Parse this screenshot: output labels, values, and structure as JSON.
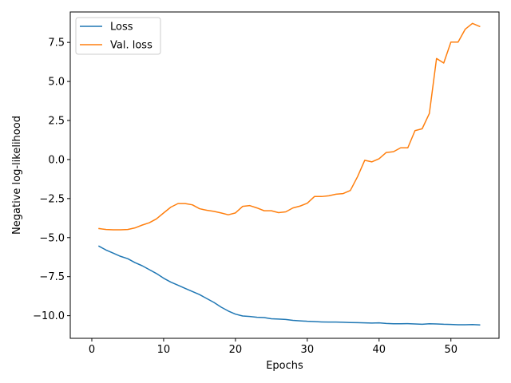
{
  "chart_data": {
    "type": "line",
    "xlabel": "Epochs",
    "ylabel": "Negative log-likelihood",
    "xlim": [
      -3,
      56.7
    ],
    "ylim": [
      -11.45,
      9.45
    ],
    "xticks": [
      0,
      10,
      20,
      30,
      40,
      50
    ],
    "yticks": [
      -10.0,
      -7.5,
      -5.0,
      -2.5,
      0.0,
      2.5,
      5.0,
      7.5
    ],
    "xtick_labels": [
      "0",
      "10",
      "20",
      "30",
      "40",
      "50"
    ],
    "ytick_labels": [
      "−10.0",
      "−7.5",
      "−5.0",
      "−2.5",
      "0.0",
      "2.5",
      "5.0",
      "7.5"
    ],
    "grid": false,
    "legend_position": "top-left",
    "x": [
      1,
      2,
      3,
      4,
      5,
      6,
      7,
      8,
      9,
      10,
      11,
      12,
      13,
      14,
      15,
      16,
      17,
      18,
      19,
      20,
      21,
      22,
      23,
      24,
      25,
      26,
      27,
      28,
      29,
      30,
      31,
      32,
      33,
      34,
      35,
      36,
      37,
      38,
      39,
      40,
      41,
      42,
      43,
      44,
      45,
      46,
      47,
      48,
      49,
      50,
      51,
      52,
      53,
      54
    ],
    "series": [
      {
        "name": "Loss",
        "color": "#1f77b4",
        "values": [
          -5.55,
          -5.8,
          -6.0,
          -6.2,
          -6.35,
          -6.6,
          -6.8,
          -7.05,
          -7.3,
          -7.6,
          -7.85,
          -8.05,
          -8.25,
          -8.45,
          -8.65,
          -8.9,
          -9.15,
          -9.45,
          -9.7,
          -9.9,
          -10.02,
          -10.05,
          -10.1,
          -10.12,
          -10.2,
          -10.22,
          -10.24,
          -10.3,
          -10.33,
          -10.36,
          -10.38,
          -10.4,
          -10.41,
          -10.41,
          -10.42,
          -10.44,
          -10.45,
          -10.46,
          -10.47,
          -10.46,
          -10.5,
          -10.52,
          -10.52,
          -10.51,
          -10.53,
          -10.55,
          -10.52,
          -10.53,
          -10.55,
          -10.56,
          -10.58,
          -10.58,
          -10.57,
          -10.59
        ]
      },
      {
        "name": "Val. loss",
        "color": "#ff7f0e",
        "values": [
          -4.42,
          -4.48,
          -4.5,
          -4.5,
          -4.48,
          -4.38,
          -4.2,
          -4.05,
          -3.8,
          -3.42,
          -3.05,
          -2.82,
          -2.82,
          -2.9,
          -3.15,
          -3.25,
          -3.32,
          -3.42,
          -3.54,
          -3.42,
          -3.0,
          -2.95,
          -3.1,
          -3.28,
          -3.28,
          -3.4,
          -3.35,
          -3.1,
          -2.98,
          -2.8,
          -2.37,
          -2.37,
          -2.32,
          -2.22,
          -2.18,
          -1.98,
          -1.1,
          -0.05,
          -0.15,
          0.05,
          0.45,
          0.5,
          0.75,
          0.75,
          1.85,
          1.97,
          2.95,
          6.47,
          6.18,
          7.52,
          7.52,
          8.35,
          8.72,
          8.52
        ]
      }
    ]
  }
}
